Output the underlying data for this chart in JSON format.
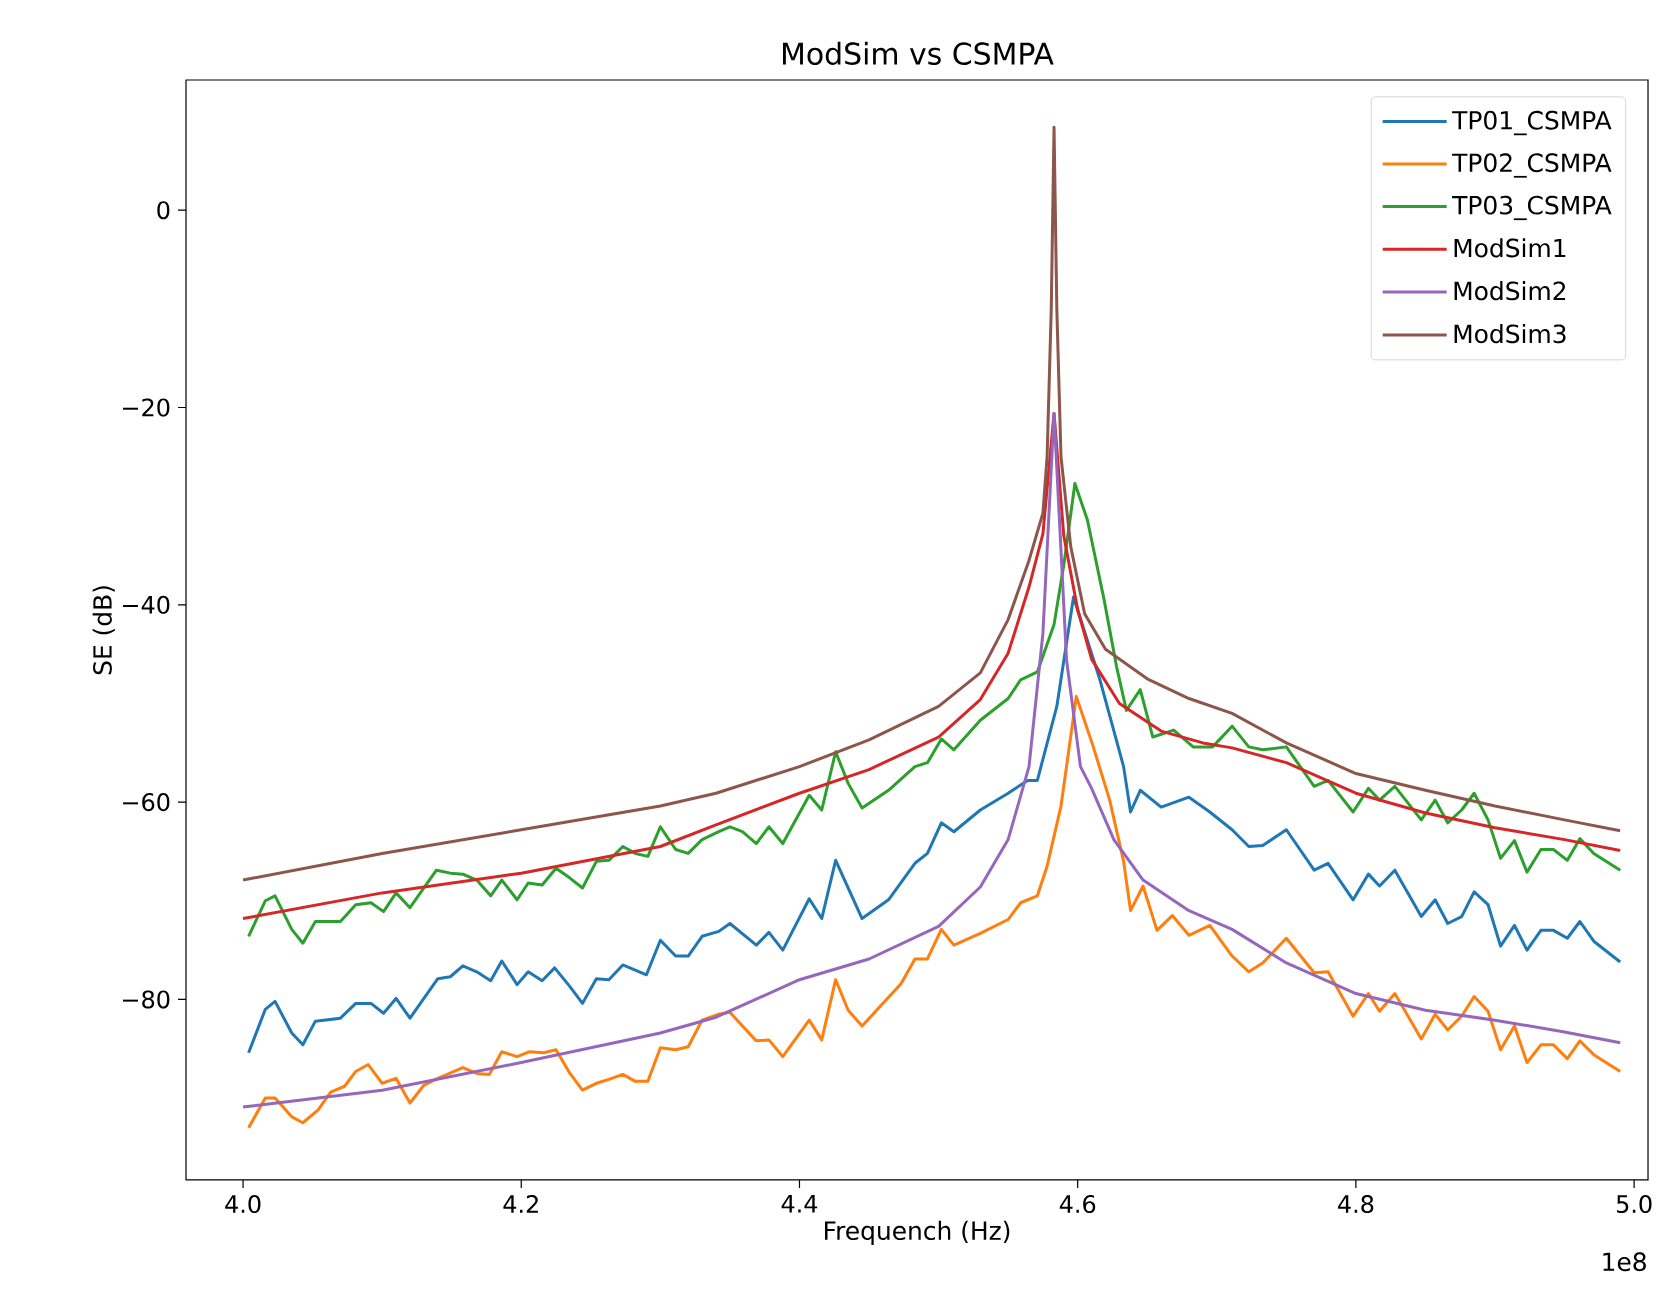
{
  "chart_data": {
    "type": "line",
    "title": "ModSim vs CSMPA",
    "xlabel": "Frequench (Hz)",
    "ylabel": "SE (dB)",
    "xlim": [
      3.959,
      5.01
    ],
    "ylim": [
      -98.3,
      13.2
    ],
    "xticks": [
      {
        "value": 4.0,
        "label": "4.0"
      },
      {
        "value": 4.2,
        "label": "4.2"
      },
      {
        "value": 4.4,
        "label": "4.4"
      },
      {
        "value": 4.6,
        "label": "4.6"
      },
      {
        "value": 4.8,
        "label": "4.8"
      },
      {
        "value": 5.0,
        "label": "5.0"
      }
    ],
    "yticks": [
      {
        "value": -80,
        "label": "−80"
      },
      {
        "value": -60,
        "label": "−60"
      },
      {
        "value": -40,
        "label": "−40"
      },
      {
        "value": -20,
        "label": "−20"
      },
      0
    ],
    "annotations": [
      "1e8"
    ],
    "legend": "top right",
    "line_style": "solid",
    "series": [
      {
        "name": "TP01_CSMPA",
        "color": "#1f77b4",
        "x": [
          4.004,
          4.016,
          4.023,
          4.035,
          4.043,
          4.052,
          4.07,
          4.081,
          4.092,
          4.101,
          4.11,
          4.12,
          4.14,
          4.149,
          4.158,
          4.168,
          4.178,
          4.186,
          4.197,
          4.205,
          4.215,
          4.224,
          4.235,
          4.244,
          4.254,
          4.263,
          4.273,
          4.29,
          4.3,
          4.311,
          4.32,
          4.33,
          4.342,
          4.35,
          4.369,
          4.378,
          4.388,
          4.407,
          4.416,
          4.426,
          4.445,
          4.464,
          4.483,
          4.492,
          4.502,
          4.511,
          4.53,
          4.55,
          4.564,
          4.571,
          4.585,
          4.597,
          4.616,
          4.633,
          4.638,
          4.645,
          4.66,
          4.68,
          4.695,
          4.711,
          4.723,
          4.733,
          4.75,
          4.77,
          4.78,
          4.798,
          4.809,
          4.817,
          4.828,
          4.847,
          4.857,
          4.866,
          4.876,
          4.885,
          4.895,
          4.904,
          4.914,
          4.923,
          4.933,
          4.942,
          4.952,
          4.961,
          4.971,
          4.99
        ],
        "values": [
          -85.4,
          -81,
          -80.2,
          -83.4,
          -84.6,
          -82.2,
          -81.9,
          -80.4,
          -80.4,
          -81.4,
          -79.9,
          -81.9,
          -77.9,
          -77.7,
          -76.6,
          -77.2,
          -78.1,
          -76.1,
          -78.5,
          -77.2,
          -78.1,
          -76.8,
          -78.7,
          -80.4,
          -77.9,
          -78,
          -76.5,
          -77.5,
          -74,
          -75.6,
          -75.6,
          -73.6,
          -73.1,
          -72.3,
          -74.5,
          -73.2,
          -75,
          -69.8,
          -71.8,
          -65.9,
          -71.8,
          -69.9,
          -66.2,
          -65.2,
          -62.1,
          -63,
          -60.8,
          -59.1,
          -57.8,
          -57.8,
          -50.3,
          -39.2,
          -47.6,
          -56.4,
          -61,
          -58.8,
          -60.5,
          -59.5,
          -61,
          -62.8,
          -64.5,
          -64.4,
          -62.8,
          -66.9,
          -66.2,
          -69.9,
          -67.3,
          -68.5,
          -66.9,
          -71.6,
          -69.9,
          -72.3,
          -71.6,
          -69.1,
          -70.4,
          -74.6,
          -72.5,
          -75,
          -73,
          -73,
          -73.8,
          -72.1,
          -74.1,
          -76.2
        ]
      },
      {
        "name": "TP02_CSMPA",
        "color": "#ff7f0e",
        "x": [
          4.004,
          4.016,
          4.023,
          4.035,
          4.043,
          4.054,
          4.063,
          4.073,
          4.081,
          4.09,
          4.1,
          4.11,
          4.12,
          4.13,
          4.14,
          4.158,
          4.168,
          4.177,
          4.186,
          4.197,
          4.206,
          4.216,
          4.225,
          4.235,
          4.244,
          4.254,
          4.263,
          4.273,
          4.282,
          4.291,
          4.3,
          4.311,
          4.32,
          4.33,
          4.342,
          4.35,
          4.359,
          4.369,
          4.378,
          4.388,
          4.407,
          4.416,
          4.426,
          4.435,
          4.445,
          4.473,
          4.483,
          4.492,
          4.502,
          4.511,
          4.53,
          4.55,
          4.559,
          4.571,
          4.578,
          4.588,
          4.599,
          4.611,
          4.623,
          4.633,
          4.638,
          4.647,
          4.657,
          4.668,
          4.68,
          4.695,
          4.711,
          4.723,
          4.733,
          4.75,
          4.77,
          4.78,
          4.798,
          4.809,
          4.817,
          4.828,
          4.847,
          4.857,
          4.866,
          4.876,
          4.885,
          4.895,
          4.904,
          4.914,
          4.923,
          4.933,
          4.942,
          4.952,
          4.961,
          4.971,
          4.99
        ],
        "values": [
          -93,
          -90,
          -90,
          -91.9,
          -92.5,
          -91.2,
          -89.4,
          -88.8,
          -87.3,
          -86.6,
          -88.5,
          -88,
          -90.5,
          -88.7,
          -88,
          -86.9,
          -87.5,
          -87.6,
          -85.3,
          -85.8,
          -85.3,
          -85.4,
          -85.1,
          -87.5,
          -89.2,
          -88.5,
          -88.1,
          -87.6,
          -88.3,
          -88.3,
          -84.9,
          -85.1,
          -84.8,
          -82.1,
          -81.5,
          -81.3,
          -82.7,
          -84.2,
          -84.1,
          -85.8,
          -82.1,
          -84.1,
          -78,
          -81.1,
          -82.7,
          -78.4,
          -75.9,
          -75.9,
          -72.9,
          -74.5,
          -73.3,
          -71.9,
          -70.2,
          -69.5,
          -66.5,
          -60.4,
          -49.3,
          -54.3,
          -59.8,
          -66,
          -71,
          -68.5,
          -73,
          -71.5,
          -73.5,
          -72.5,
          -75.6,
          -77.2,
          -76.3,
          -73.8,
          -77.3,
          -77.2,
          -81.7,
          -79.4,
          -81.2,
          -79.4,
          -84,
          -81.5,
          -83.1,
          -81.7,
          -79.7,
          -81.2,
          -85.1,
          -82.7,
          -86.4,
          -84.6,
          -84.6,
          -86,
          -84.2,
          -85.6,
          -87.3
        ]
      },
      {
        "name": "TP03_CSMPA",
        "color": "#2ca02c",
        "x": [
          4.004,
          4.016,
          4.023,
          4.035,
          4.043,
          4.052,
          4.07,
          4.081,
          4.092,
          4.101,
          4.11,
          4.12,
          4.139,
          4.149,
          4.158,
          4.168,
          4.178,
          4.186,
          4.197,
          4.205,
          4.215,
          4.225,
          4.235,
          4.244,
          4.254,
          4.263,
          4.273,
          4.282,
          4.291,
          4.3,
          4.311,
          4.32,
          4.33,
          4.342,
          4.35,
          4.359,
          4.369,
          4.378,
          4.388,
          4.407,
          4.416,
          4.426,
          4.435,
          4.445,
          4.464,
          4.483,
          4.492,
          4.502,
          4.511,
          4.53,
          4.55,
          4.559,
          4.571,
          4.583,
          4.59,
          4.598,
          4.607,
          4.619,
          4.628,
          4.635,
          4.645,
          4.654,
          4.669,
          4.683,
          4.697,
          4.711,
          4.723,
          4.733,
          4.75,
          4.77,
          4.78,
          4.798,
          4.809,
          4.817,
          4.828,
          4.847,
          4.857,
          4.866,
          4.876,
          4.885,
          4.895,
          4.904,
          4.914,
          4.923,
          4.933,
          4.942,
          4.952,
          4.961,
          4.971,
          4.99
        ],
        "values": [
          -73.6,
          -70,
          -69.5,
          -72.9,
          -74.3,
          -72.1,
          -72.1,
          -70.4,
          -70.2,
          -71.1,
          -69.2,
          -70.7,
          -66.9,
          -67.2,
          -67.3,
          -67.9,
          -69.5,
          -67.9,
          -69.9,
          -68.2,
          -68.4,
          -66.7,
          -67.7,
          -68.7,
          -66,
          -65.9,
          -64.5,
          -65.2,
          -65.5,
          -62.5,
          -64.8,
          -65.2,
          -63.8,
          -63,
          -62.5,
          -63,
          -64.2,
          -62.5,
          -64.2,
          -59.3,
          -60.8,
          -54.9,
          -58.1,
          -60.6,
          -58.8,
          -56.4,
          -56,
          -53.6,
          -54.7,
          -51.7,
          -49.5,
          -47.6,
          -46.8,
          -42,
          -36,
          -27.7,
          -31.4,
          -39.5,
          -46.3,
          -50.7,
          -48.6,
          -53.4,
          -52.7,
          -54.4,
          -54.4,
          -52.3,
          -54.4,
          -54.7,
          -54.4,
          -58.4,
          -57.8,
          -61,
          -58.6,
          -59.8,
          -58.4,
          -61.8,
          -59.8,
          -62.1,
          -60.8,
          -59.1,
          -61.8,
          -65.7,
          -63.9,
          -67.1,
          -64.8,
          -64.8,
          -65.9,
          -63.7,
          -65.2,
          -66.9
        ]
      },
      {
        "name": "ModSim1",
        "color": "#d62728",
        "x": [
          4.0,
          4.1,
          4.2,
          4.3,
          4.34,
          4.4,
          4.45,
          4.5,
          4.53,
          4.55,
          4.565,
          4.575,
          4.583,
          4.59,
          4.6,
          4.61,
          4.63,
          4.66,
          4.69,
          4.711,
          4.75,
          4.8,
          4.85,
          4.9,
          4.95,
          4.99
        ],
        "values": [
          -71.8,
          -69.2,
          -67.2,
          -64.5,
          -62.3,
          -59.1,
          -56.7,
          -53.4,
          -49.6,
          -44.9,
          -38.2,
          -32.8,
          -20.6,
          -33,
          -40.5,
          -45.5,
          -50,
          -52.8,
          -54,
          -54.5,
          -56,
          -59.1,
          -61.1,
          -62.6,
          -63.8,
          -64.9
        ]
      },
      {
        "name": "ModSim2",
        "color": "#9467bd",
        "x": [
          4.0,
          4.1,
          4.2,
          4.3,
          4.34,
          4.4,
          4.45,
          4.5,
          4.53,
          4.55,
          4.565,
          4.575,
          4.583,
          4.592,
          4.602,
          4.61,
          4.626,
          4.647,
          4.68,
          4.711,
          4.75,
          4.8,
          4.85,
          4.9,
          4.95,
          4.99
        ],
        "values": [
          -90.9,
          -89.2,
          -86.4,
          -83.4,
          -81.8,
          -78,
          -75.9,
          -72.6,
          -68.6,
          -63.8,
          -56.4,
          -42.9,
          -20.6,
          -45.6,
          -56.4,
          -58.6,
          -63.8,
          -67.9,
          -71,
          -72.9,
          -76.3,
          -79.4,
          -81.1,
          -82.1,
          -83.3,
          -84.4
        ]
      },
      {
        "name": "ModSim3",
        "color": "#8c564b",
        "x": [
          4.0,
          4.1,
          4.2,
          4.3,
          4.34,
          4.4,
          4.45,
          4.5,
          4.53,
          4.55,
          4.565,
          4.575,
          4.578,
          4.581,
          4.583,
          4.585,
          4.588,
          4.595,
          4.605,
          4.62,
          4.65,
          4.68,
          4.711,
          4.75,
          4.8,
          4.85,
          4.9,
          4.95,
          4.99
        ],
        "values": [
          -67.9,
          -65.2,
          -62.8,
          -60.4,
          -59.1,
          -56.4,
          -53.7,
          -50.3,
          -46.9,
          -41.5,
          -35.5,
          -30.7,
          -25,
          -10,
          8.4,
          -10,
          -25,
          -34.1,
          -40.9,
          -44.5,
          -47.5,
          -49.5,
          -51,
          -54,
          -57.1,
          -58.8,
          -60.4,
          -61.8,
          -62.9
        ]
      }
    ]
  }
}
